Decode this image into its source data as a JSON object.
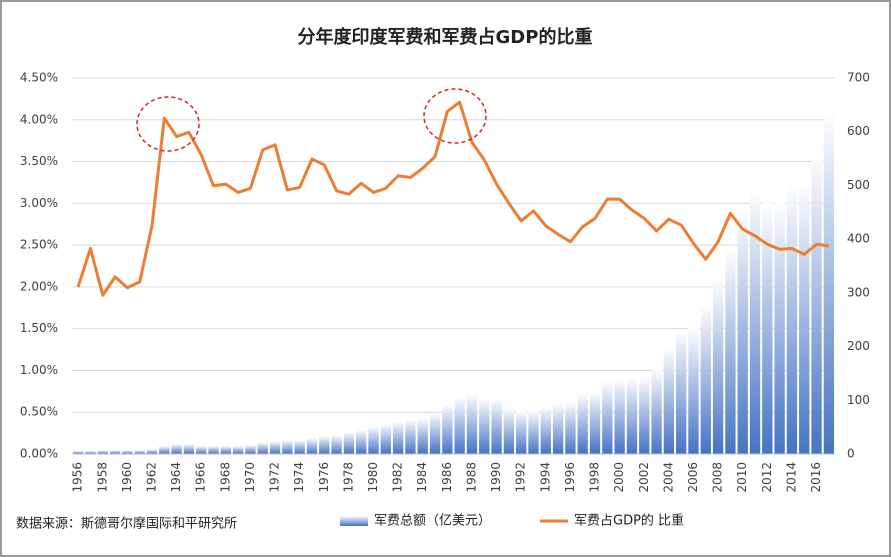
{
  "chart_data": {
    "type": "bar-line",
    "title": "分年度印度军费和军费占GDP的比重",
    "source": "数据来源：斯德哥尔摩国际和平研究所",
    "categories": [
      "1956",
      null,
      "1958",
      null,
      "1960",
      null,
      "1962",
      null,
      "1964",
      null,
      "1966",
      null,
      "1968",
      null,
      "1970",
      null,
      "1972",
      null,
      "1974",
      null,
      "1976",
      null,
      "1978",
      null,
      "1980",
      null,
      "1982",
      null,
      "1984",
      null,
      "1986",
      null,
      "1988",
      null,
      "1990",
      null,
      "1992",
      null,
      "1994",
      null,
      "1996",
      null,
      "1998",
      null,
      "2000",
      null,
      "2002",
      null,
      "2004",
      null,
      "2006",
      null,
      "2008",
      null,
      "2010",
      null,
      "2012",
      null,
      "2014",
      null,
      "2016",
      null
    ],
    "series": [
      {
        "name": "军费总额（亿美元）",
        "type": "bar",
        "axis": "y2",
        "color": "#4472c4",
        "values": [
          6,
          6,
          7,
          7,
          7,
          7,
          9,
          15,
          19,
          19,
          15,
          15,
          15,
          15,
          17,
          22,
          24,
          26,
          26,
          30,
          34,
          35,
          41,
          45,
          52,
          56,
          61,
          65,
          67,
          76,
          93,
          106,
          112,
          104,
          104,
          86,
          80,
          80,
          88,
          95,
          97,
          114,
          117,
          136,
          141,
          143,
          145,
          160,
          199,
          231,
          236,
          279,
          328,
          384,
          458,
          495,
          469,
          471,
          506,
          508,
          562,
          637
        ]
      },
      {
        "name": "军费占GDP的 比重",
        "type": "line",
        "axis": "y",
        "color": "#ed7d31",
        "values": [
          2.0,
          2.46,
          1.9,
          2.12,
          1.99,
          2.06,
          2.73,
          4.02,
          3.8,
          3.85,
          3.58,
          3.21,
          3.23,
          3.13,
          3.18,
          3.64,
          3.7,
          3.16,
          3.19,
          3.53,
          3.46,
          3.15,
          3.11,
          3.24,
          3.13,
          3.18,
          3.33,
          3.31,
          3.42,
          3.56,
          4.1,
          4.21,
          3.73,
          3.52,
          3.23,
          3.0,
          2.79,
          2.91,
          2.73,
          2.63,
          2.54,
          2.72,
          2.82,
          3.05,
          3.05,
          2.92,
          2.82,
          2.67,
          2.81,
          2.74,
          2.52,
          2.33,
          2.54,
          2.88,
          2.69,
          2.61,
          2.51,
          2.45,
          2.46,
          2.39,
          2.51,
          2.49
        ]
      }
    ],
    "ylim": [
      0,
      4.5
    ],
    "yticks": [
      {
        "value": 0,
        "label": "0.00%"
      },
      {
        "value": 0.5,
        "label": "0.50%"
      },
      {
        "value": 1,
        "label": "1.00%"
      },
      {
        "value": 1.5,
        "label": "1.50%"
      },
      {
        "value": 2,
        "label": "2.00%"
      },
      {
        "value": 2.5,
        "label": "2.50%"
      },
      {
        "value": 3,
        "label": "3.00%"
      },
      {
        "value": 3.5,
        "label": "3.50%"
      },
      {
        "value": 4,
        "label": "4.00%"
      },
      {
        "value": 4.5,
        "label": "4.50%"
      }
    ],
    "y2lim": [
      0,
      700
    ],
    "y2ticks": [
      0,
      100,
      200,
      300,
      400,
      500,
      600,
      700
    ],
    "grid": true
  }
}
